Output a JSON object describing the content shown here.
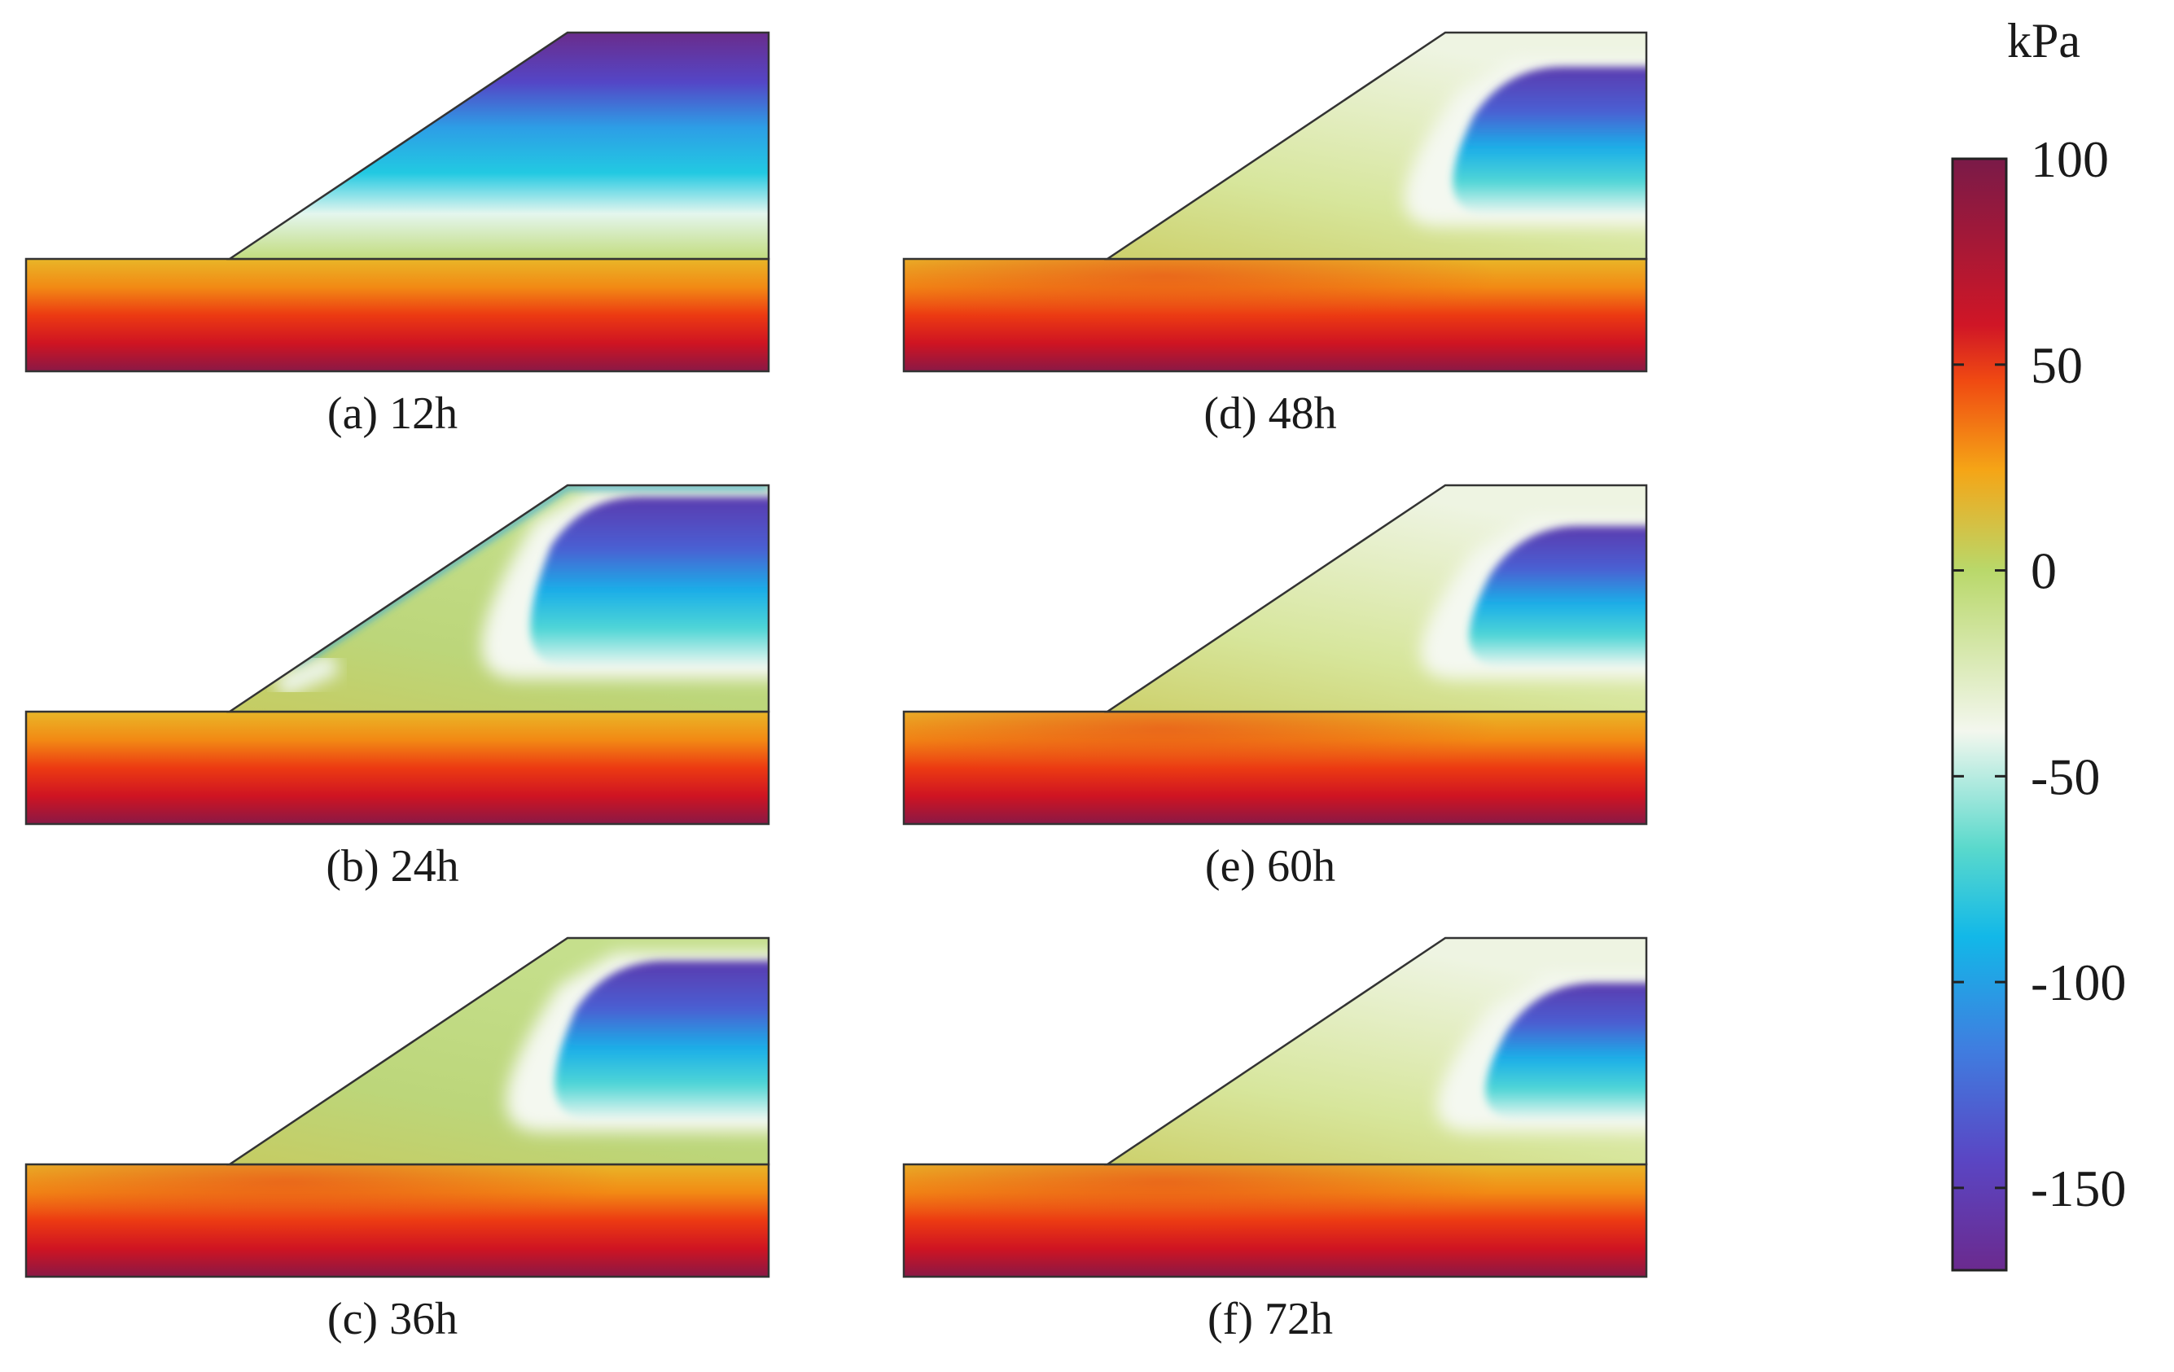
{
  "colorbar": {
    "unit": "kPa",
    "min": -170,
    "max": 100,
    "ticks": [
      {
        "value": 100,
        "label": "100"
      },
      {
        "value": 50,
        "label": "50"
      },
      {
        "value": 0,
        "label": "0"
      },
      {
        "value": -50,
        "label": "-50"
      },
      {
        "value": -100,
        "label": "-100"
      },
      {
        "value": -150,
        "label": "-150"
      }
    ],
    "colors": {
      "top": "#7a1a48",
      "red": "#d01626",
      "orange": "#f04a12",
      "amber": "#f5a516",
      "lime": "#b9d86a",
      "white": "#f3f7ee",
      "aqua": "#5ad9cc",
      "cyan": "#12b8e8",
      "blue": "#3f7ee0",
      "violet": "#5a46c4",
      "bottom": "#6b2a8e"
    }
  },
  "panels": [
    {
      "id": "a",
      "caption": "(a) 12h"
    },
    {
      "id": "b",
      "caption": "(b) 24h"
    },
    {
      "id": "c",
      "caption": "(c) 36h"
    },
    {
      "id": "d",
      "caption": "(d) 48h"
    },
    {
      "id": "e",
      "caption": "(e) 60h"
    },
    {
      "id": "f",
      "caption": "(f) 72h"
    }
  ]
}
